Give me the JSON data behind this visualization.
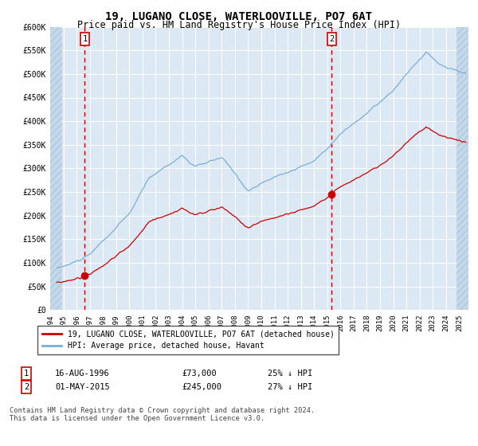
{
  "title": "19, LUGANO CLOSE, WATERLOOVILLE, PO7 6AT",
  "subtitle": "Price paid vs. HM Land Registry's House Price Index (HPI)",
  "title_fontsize": 10,
  "subtitle_fontsize": 8.5,
  "bg_color": "#dce9f5",
  "grid_color": "#ffffff",
  "red_line_color": "#cc0000",
  "blue_line_color": "#7aafd4",
  "marker_color": "#cc0000",
  "dashed_line_color": "#cc0000",
  "purchase1_x": 1996.625,
  "purchase1_y": 73000,
  "purchase1_label": "1",
  "purchase2_x": 2015.333,
  "purchase2_y": 245000,
  "purchase2_label": "2",
  "ylim": [
    0,
    600000
  ],
  "xlim_start": 1994.0,
  "xlim_end": 2025.7,
  "yticks": [
    0,
    50000,
    100000,
    150000,
    200000,
    250000,
    300000,
    350000,
    400000,
    450000,
    500000,
    550000,
    600000
  ],
  "ytick_labels": [
    "£0",
    "£50K",
    "£100K",
    "£150K",
    "£200K",
    "£250K",
    "£300K",
    "£350K",
    "£400K",
    "£450K",
    "£500K",
    "£550K",
    "£600K"
  ],
  "legend_label_red": "19, LUGANO CLOSE, WATERLOOVILLE, PO7 6AT (detached house)",
  "legend_label_blue": "HPI: Average price, detached house, Havant",
  "note1_num": "1",
  "note1_date": "16-AUG-1996",
  "note1_price": "£73,000",
  "note1_hpi": "25% ↓ HPI",
  "note2_num": "2",
  "note2_date": "01-MAY-2015",
  "note2_price": "£245,000",
  "note2_hpi": "27% ↓ HPI",
  "footer": "Contains HM Land Registry data © Crown copyright and database right 2024.\nThis data is licensed under the Open Government Licence v3.0.",
  "hatch_left_end": 1994.9,
  "hatch_right_start": 2024.8
}
